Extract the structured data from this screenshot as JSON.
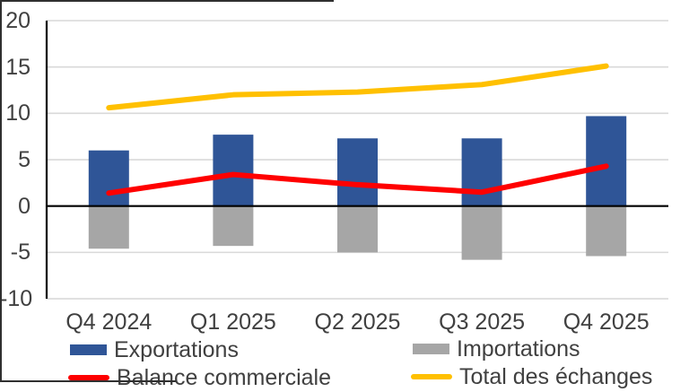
{
  "chart_data": {
    "type": "combo",
    "categories": [
      "Q4 2024",
      "Q1 2025",
      "Q2 2025",
      "Q3 2025",
      "Q4 2025"
    ],
    "series": [
      {
        "name": "Exportations",
        "type": "bar",
        "color": "#2F5597",
        "values": [
          6.0,
          7.7,
          7.3,
          7.3,
          9.7
        ]
      },
      {
        "name": "Importations",
        "type": "bar",
        "color": "#A6A6A6",
        "values": [
          -4.6,
          -4.3,
          -5.0,
          -5.8,
          -5.4
        ]
      },
      {
        "name": "Balance commerciale",
        "type": "line",
        "color": "#FF0000",
        "values": [
          1.4,
          3.4,
          2.3,
          1.5,
          4.3
        ]
      },
      {
        "name": "Total des échanges",
        "type": "line",
        "color": "#FFC000",
        "values": [
          10.6,
          12.0,
          12.3,
          13.1,
          15.1
        ]
      }
    ],
    "ylim": [
      -10,
      20
    ],
    "ytick_step": 5,
    "yticks": [
      20,
      15,
      10,
      5,
      0,
      -5,
      -10
    ],
    "grid": true,
    "legend_position": "bottom",
    "colors": {
      "grid": "#D9D9D9",
      "axis": "#000000",
      "text": "#404040",
      "frame": "#303030"
    }
  }
}
